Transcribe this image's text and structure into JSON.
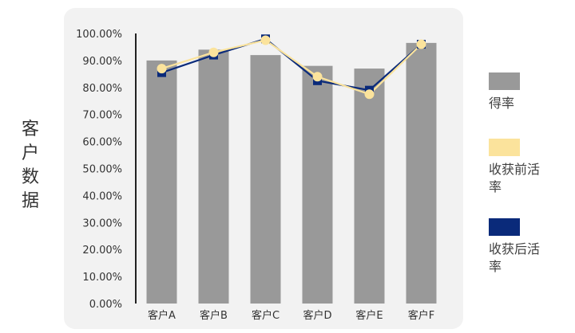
{
  "side_title": "客户数据",
  "colors": {
    "score_bar": "#999999",
    "before_line": "#fbe39c",
    "after_line": "#0a2a7a",
    "axis": "#222222"
  },
  "chart_data": {
    "type": "bar",
    "categories": [
      "客户A",
      "客户B",
      "客户C",
      "客户D",
      "客户E",
      "客户F"
    ],
    "series": [
      {
        "name": "得率",
        "type": "bar",
        "values": [
          90,
          94,
          92,
          88,
          87,
          96.5
        ]
      },
      {
        "name": "收获前活率",
        "type": "line",
        "values": [
          87,
          93,
          97.5,
          84,
          77.5,
          96
        ]
      },
      {
        "name": "收获后活率",
        "type": "line",
        "values": [
          85.5,
          92,
          98,
          82.5,
          79,
          96
        ]
      }
    ],
    "ylim": [
      0,
      100
    ],
    "yticks": [
      "0.00%",
      "10.00%",
      "20.00%",
      "30.00%",
      "40.00%",
      "50.00%",
      "60.00%",
      "70.00%",
      "80.00%",
      "90.00%",
      "100.00%"
    ],
    "legend_position": "right",
    "grid": false
  }
}
